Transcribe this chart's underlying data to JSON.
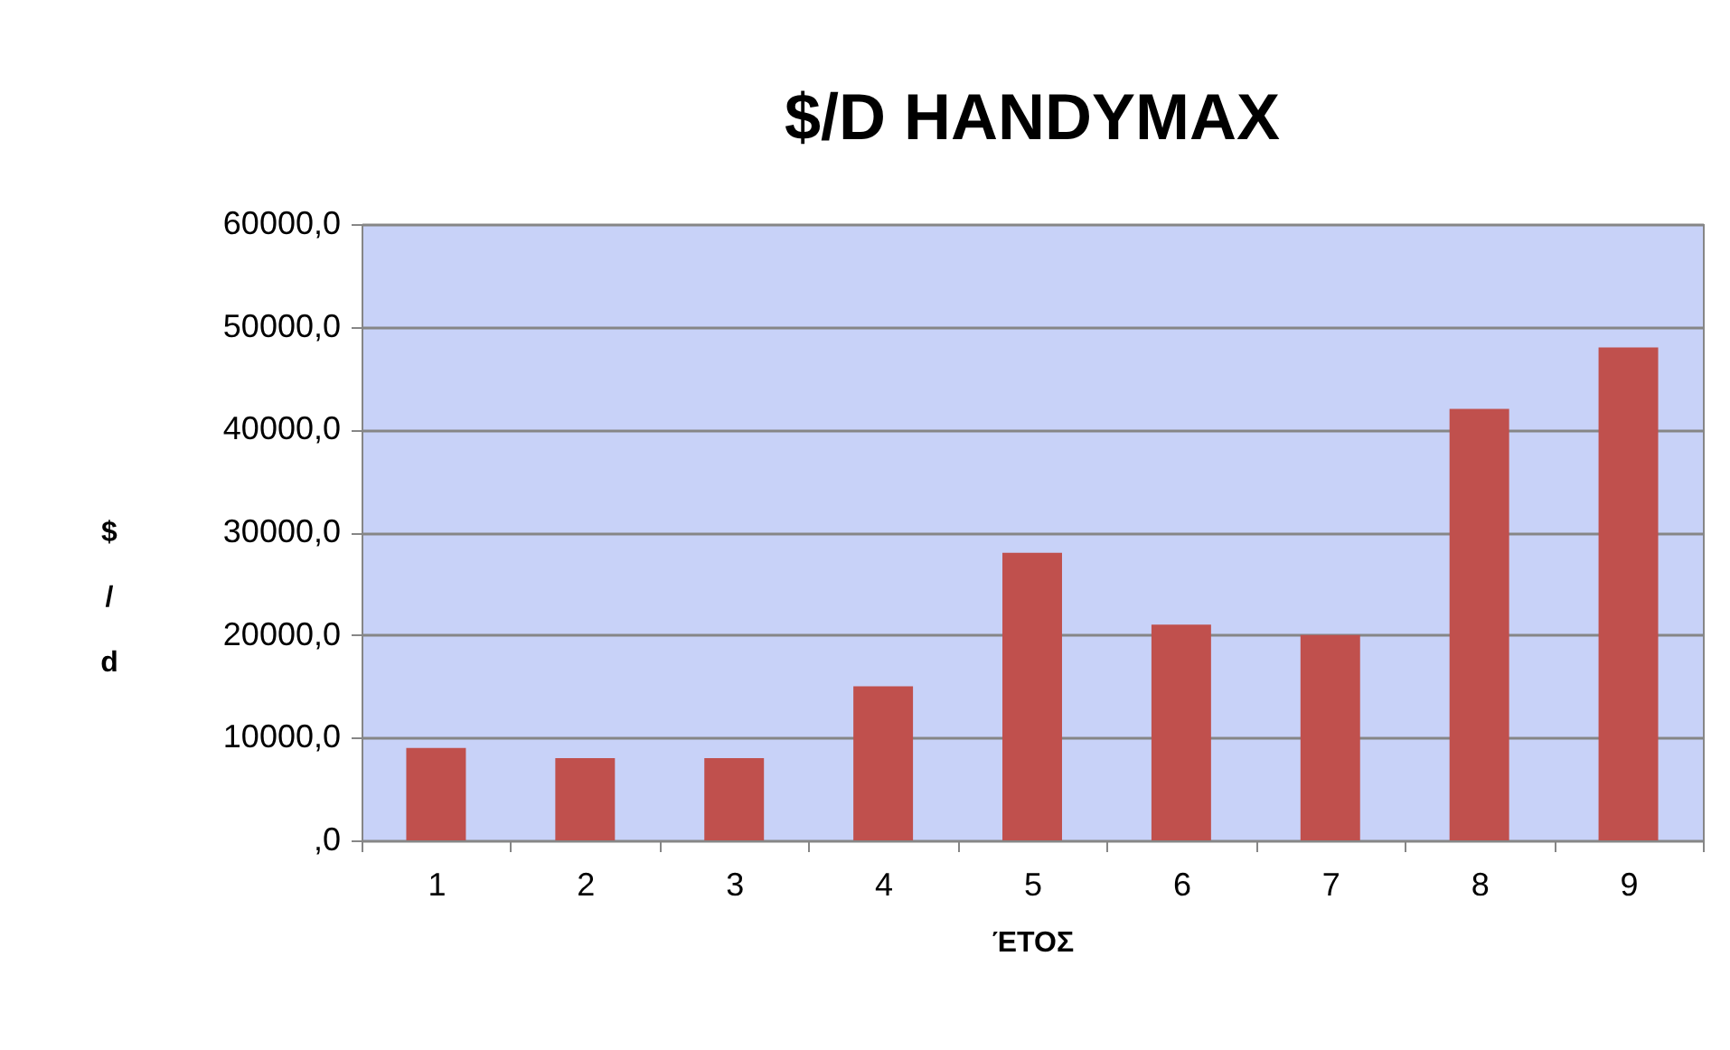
{
  "chart_data": {
    "type": "bar",
    "title": "$/D HANDYMAX",
    "xlabel": "ΈΤΟΣ",
    "ylabel": "$/d",
    "categories": [
      "1",
      "2",
      "3",
      "4",
      "5",
      "6",
      "7",
      "8",
      "9"
    ],
    "values": [
      9000,
      8000,
      8000,
      15000,
      28000,
      21000,
      20000,
      42000,
      48000
    ],
    "color": "#c0504d",
    "ylim": [
      0,
      60000
    ],
    "yticks": [
      {
        "value": 0,
        "label": ",0"
      },
      {
        "value": 10000,
        "label": "10000,0"
      },
      {
        "value": 20000,
        "label": "20000,0"
      },
      {
        "value": 30000,
        "label": "30000,0"
      },
      {
        "value": 40000,
        "label": "40000,0"
      },
      {
        "value": 50000,
        "label": "50000,0"
      },
      {
        "value": 60000,
        "label": "60000,0"
      }
    ],
    "grid": "y"
  }
}
